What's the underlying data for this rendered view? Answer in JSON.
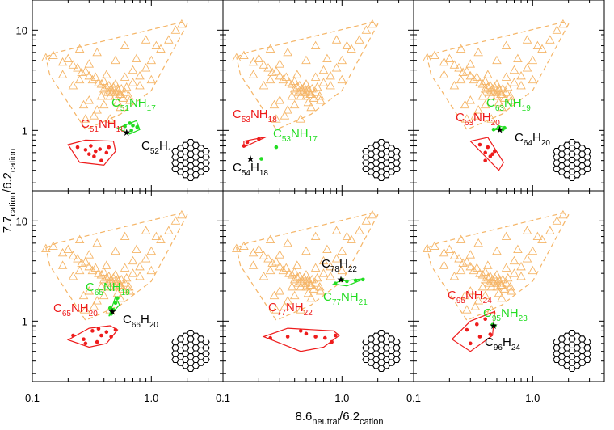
{
  "figure": {
    "xlabel": {
      "base": "8.6",
      "sub1": "neutral",
      "mid": "/6.2",
      "sub2": "cation"
    },
    "ylabel": {
      "base": "7.7",
      "sub1": "cation",
      "mid": "/6.2",
      "sub2": "cation"
    },
    "x_tick_labels": [
      "0.1",
      "1.0"
    ],
    "y_tick_labels": [
      "1",
      "10"
    ],
    "colors": {
      "envelope": "#f5b567",
      "red": "#ee1c1c",
      "green": "#22dd22",
      "black": "#000000"
    }
  },
  "chart_data": {
    "type": "scatter",
    "layout": "2x3 panel grid, shared axes",
    "xscale": "log",
    "yscale": "log",
    "xlim": [
      0.1,
      4.0
    ],
    "ylim": [
      0.25,
      20
    ],
    "background_cloud": {
      "marker": "open triangle",
      "color": "#f5b567",
      "hull": [
        [
          0.13,
          5.4
        ],
        [
          0.16,
          6.0
        ],
        [
          1.8,
          12.0
        ],
        [
          2.0,
          11.5
        ],
        [
          1.0,
          2.5
        ],
        [
          0.55,
          1.45
        ],
        [
          0.28,
          1.02
        ],
        [
          0.14,
          3.6
        ]
      ],
      "points": [
        [
          0.13,
          5.3
        ],
        [
          0.15,
          5.6
        ],
        [
          0.18,
          4.8
        ],
        [
          0.2,
          5.2
        ],
        [
          0.22,
          4.5
        ],
        [
          0.24,
          4.2
        ],
        [
          0.26,
          3.8
        ],
        [
          0.28,
          3.9
        ],
        [
          0.3,
          3.5
        ],
        [
          0.32,
          3.2
        ],
        [
          0.34,
          3.4
        ],
        [
          0.36,
          3.0
        ],
        [
          0.38,
          2.9
        ],
        [
          0.4,
          3.1
        ],
        [
          0.42,
          2.7
        ],
        [
          0.44,
          2.8
        ],
        [
          0.45,
          2.5
        ],
        [
          0.46,
          2.6
        ],
        [
          0.48,
          2.7
        ],
        [
          0.5,
          2.9
        ],
        [
          0.52,
          2.6
        ],
        [
          0.55,
          2.3
        ],
        [
          0.4,
          2.6
        ],
        [
          0.43,
          2.4
        ],
        [
          0.47,
          2.4
        ],
        [
          0.5,
          2.4
        ],
        [
          0.53,
          2.5
        ],
        [
          0.56,
          2.6
        ],
        [
          0.6,
          2.4
        ],
        [
          0.65,
          2.2
        ],
        [
          0.5,
          2.2
        ],
        [
          0.54,
          2.3
        ],
        [
          0.58,
          2.1
        ],
        [
          0.45,
          2.2
        ],
        [
          0.62,
          2.7
        ],
        [
          0.7,
          3.0
        ],
        [
          0.8,
          3.5
        ],
        [
          0.9,
          4.2
        ],
        [
          1.0,
          5.0
        ],
        [
          1.2,
          6.5
        ],
        [
          1.4,
          8.0
        ],
        [
          1.6,
          10.0
        ],
        [
          1.8,
          11.5
        ],
        [
          0.9,
          8.0
        ],
        [
          0.6,
          7.0
        ],
        [
          0.35,
          6.0
        ],
        [
          0.25,
          6.5
        ],
        [
          0.3,
          2.0
        ],
        [
          0.35,
          1.6
        ],
        [
          0.28,
          1.3
        ],
        [
          0.33,
          1.4
        ],
        [
          0.4,
          1.8
        ],
        [
          0.3,
          4.6
        ],
        [
          0.5,
          5.0
        ],
        [
          0.7,
          4.0
        ],
        [
          0.8,
          2.8
        ],
        [
          1.0,
          3.2
        ],
        [
          0.55,
          1.7
        ],
        [
          0.45,
          1.3
        ],
        [
          0.22,
          2.8
        ],
        [
          0.18,
          3.6
        ],
        [
          0.25,
          3.2
        ],
        [
          0.38,
          2.2
        ],
        [
          0.6,
          3.4
        ],
        [
          0.75,
          5.2
        ],
        [
          1.1,
          7.0
        ],
        [
          0.27,
          1.8
        ],
        [
          0.42,
          3.6
        ],
        [
          0.52,
          1.9
        ],
        [
          0.66,
          2.0
        ]
      ]
    },
    "panels": [
      {
        "red": {
          "label": {
            "atom1": "C",
            "n1": "51",
            "atom2": "NH",
            "n2": "18"
          },
          "points": [
            [
              0.24,
              0.68
            ],
            [
              0.3,
              0.58
            ],
            [
              0.34,
              0.62
            ],
            [
              0.31,
              0.7
            ],
            [
              0.37,
              0.65
            ],
            [
              0.42,
              0.6
            ],
            [
              0.44,
              0.68
            ],
            [
              0.33,
              0.55
            ],
            [
              0.28,
              0.64
            ],
            [
              0.38,
              0.5
            ]
          ],
          "hull": [
            [
              0.2,
              0.72
            ],
            [
              0.28,
              0.8
            ],
            [
              0.48,
              0.78
            ],
            [
              0.5,
              0.62
            ],
            [
              0.4,
              0.45
            ],
            [
              0.25,
              0.48
            ]
          ]
        },
        "green": {
          "label": {
            "atom1": "C",
            "n1": "51",
            "atom2": "NH",
            "n2": "17"
          },
          "points": [
            [
              0.6,
              1.1
            ],
            [
              0.66,
              1.18
            ],
            [
              0.7,
              1.12
            ],
            [
              0.76,
              1.08
            ],
            [
              0.68,
              1.0
            ]
          ],
          "hull": [
            [
              0.52,
              1.05
            ],
            [
              0.75,
              1.25
            ],
            [
              0.8,
              1.02
            ],
            [
              0.66,
              0.92
            ]
          ]
        },
        "black": {
          "label": {
            "atom1": "C",
            "n1": "52",
            "atom2": "H",
            "n2": "18"
          },
          "star": [
            0.62,
            0.95
          ]
        }
      },
      {
        "red": {
          "label": {
            "atom1": "C",
            "n1": "53",
            "atom2": "NH",
            "n2": "18"
          },
          "points": [
            [
              0.15,
              0.7
            ],
            [
              0.16,
              0.76
            ],
            [
              0.2,
              0.82
            ]
          ],
          "hull": [
            [
              0.15,
              0.68
            ],
            [
              0.23,
              0.86
            ],
            [
              0.15,
              0.78
            ]
          ]
        },
        "green": {
          "label": {
            "atom1": "C",
            "n1": "53",
            "atom2": "NH",
            "n2": "17"
          },
          "points": [
            [
              0.21,
              0.52
            ],
            [
              0.28,
              0.68
            ]
          ],
          "hull": []
        },
        "black": {
          "label": {
            "atom1": "C",
            "n1": "54",
            "atom2": "H",
            "n2": "18"
          },
          "star": [
            0.17,
            0.52
          ]
        }
      },
      {
        "red": {
          "label": {
            "atom1": "C",
            "n1": "63",
            "atom2": "NH",
            "n2": "20"
          },
          "points": [
            [
              0.36,
              0.72
            ],
            [
              0.4,
              0.6
            ],
            [
              0.42,
              0.68
            ],
            [
              0.44,
              0.55
            ],
            [
              0.4,
              0.5
            ],
            [
              0.48,
              0.62
            ],
            [
              0.46,
              0.58
            ]
          ],
          "hull": [
            [
              0.3,
              0.78
            ],
            [
              0.42,
              0.85
            ],
            [
              0.57,
              0.48
            ],
            [
              0.52,
              0.4
            ]
          ]
        },
        "green": {
          "label": {
            "atom1": "C",
            "n1": "63",
            "atom2": "NH",
            "n2": "19"
          },
          "points": [
            [
              0.47,
              1.02
            ],
            [
              0.52,
              1.08
            ],
            [
              0.56,
              1.02
            ],
            [
              0.58,
              1.06
            ]
          ],
          "hull": [
            [
              0.46,
              1.0
            ],
            [
              0.6,
              1.06
            ],
            [
              0.53,
              1.1
            ]
          ]
        },
        "black": {
          "label": {
            "atom1": "C",
            "n1": "64",
            "atom2": "H",
            "n2": "20"
          },
          "star": [
            0.53,
            1.02
          ]
        }
      },
      {
        "red": {
          "label": {
            "atom1": "C",
            "n1": "65",
            "atom2": "NH",
            "n2": "20"
          },
          "points": [
            [
              0.22,
              0.72
            ],
            [
              0.27,
              0.66
            ],
            [
              0.32,
              0.8
            ],
            [
              0.36,
              0.84
            ],
            [
              0.42,
              0.78
            ],
            [
              0.46,
              0.7
            ],
            [
              0.35,
              0.62
            ],
            [
              0.28,
              0.6
            ],
            [
              0.5,
              0.82
            ],
            [
              0.38,
              0.72
            ]
          ],
          "hull": [
            [
              0.2,
              0.65
            ],
            [
              0.3,
              0.85
            ],
            [
              0.45,
              0.9
            ],
            [
              0.52,
              0.82
            ],
            [
              0.42,
              0.6
            ],
            [
              0.3,
              0.55
            ]
          ]
        },
        "green": {
          "label": {
            "atom1": "C",
            "n1": "65",
            "atom2": "NH",
            "n2": "19"
          },
          "points": [
            [
              0.45,
              1.35
            ],
            [
              0.48,
              1.3
            ],
            [
              0.5,
              1.52
            ],
            [
              0.46,
              1.18
            ],
            [
              0.52,
              1.7
            ]
          ],
          "hull": [
            [
              0.44,
              1.12
            ],
            [
              0.5,
              1.75
            ],
            [
              0.54,
              1.45
            ]
          ]
        },
        "black": {
          "label": {
            "atom1": "C",
            "n1": "66",
            "atom2": "H",
            "n2": "20"
          },
          "star": [
            0.47,
            1.25
          ]
        }
      },
      {
        "red": {
          "label": {
            "atom1": "C",
            "n1": "77",
            "atom2": "NH",
            "n2": "22"
          },
          "points": [
            [
              0.25,
              0.68
            ],
            [
              0.35,
              0.7
            ],
            [
              0.45,
              0.8
            ],
            [
              0.5,
              0.75
            ],
            [
              0.6,
              0.7
            ],
            [
              0.72,
              0.68
            ],
            [
              0.82,
              0.62
            ],
            [
              0.88,
              0.72
            ]
          ],
          "hull": [
            [
              0.22,
              0.7
            ],
            [
              0.35,
              0.85
            ],
            [
              0.85,
              0.8
            ],
            [
              0.95,
              0.72
            ],
            [
              0.7,
              0.55
            ],
            [
              0.45,
              0.5
            ]
          ]
        },
        "green": {
          "label": {
            "atom1": "C",
            "n1": "77",
            "atom2": "NH",
            "n2": "21"
          },
          "points": [
            [
              0.88,
              2.38
            ],
            [
              1.0,
              2.6
            ],
            [
              1.1,
              2.5
            ],
            [
              1.3,
              2.55
            ],
            [
              1.5,
              2.6
            ]
          ],
          "hull": [
            [
              0.85,
              2.35
            ],
            [
              0.95,
              2.5
            ],
            [
              1.55,
              2.66
            ],
            [
              1.1,
              2.25
            ]
          ]
        },
        "black": {
          "label": {
            "atom1": "C",
            "n1": "78",
            "atom2": "H",
            "n2": "22"
          },
          "star": [
            0.98,
            2.6
          ]
        }
      },
      {
        "red": {
          "label": {
            "atom1": "C",
            "n1": "95",
            "atom2": "NH",
            "n2": "24"
          },
          "points": [
            [
              0.28,
              0.82
            ],
            [
              0.34,
              0.93
            ],
            [
              0.4,
              1.05
            ],
            [
              0.44,
              0.74
            ],
            [
              0.36,
              0.7
            ],
            [
              0.3,
              0.6
            ]
          ],
          "hull": [
            [
              0.21,
              0.66
            ],
            [
              0.3,
              1.0
            ],
            [
              0.48,
              1.25
            ],
            [
              0.46,
              0.72
            ],
            [
              0.3,
              0.5
            ]
          ]
        },
        "green": {
          "label": {
            "atom1": "C",
            "n1": "95",
            "atom2": "NH",
            "n2": "23"
          },
          "points": [
            [
              0.46,
              0.92
            ],
            [
              0.48,
              0.9
            ]
          ],
          "hull": []
        },
        "black": {
          "label": {
            "atom1": "C",
            "n1": "96",
            "atom2": "H",
            "n2": "24"
          },
          "star": [
            0.47,
            0.9
          ]
        }
      }
    ]
  }
}
